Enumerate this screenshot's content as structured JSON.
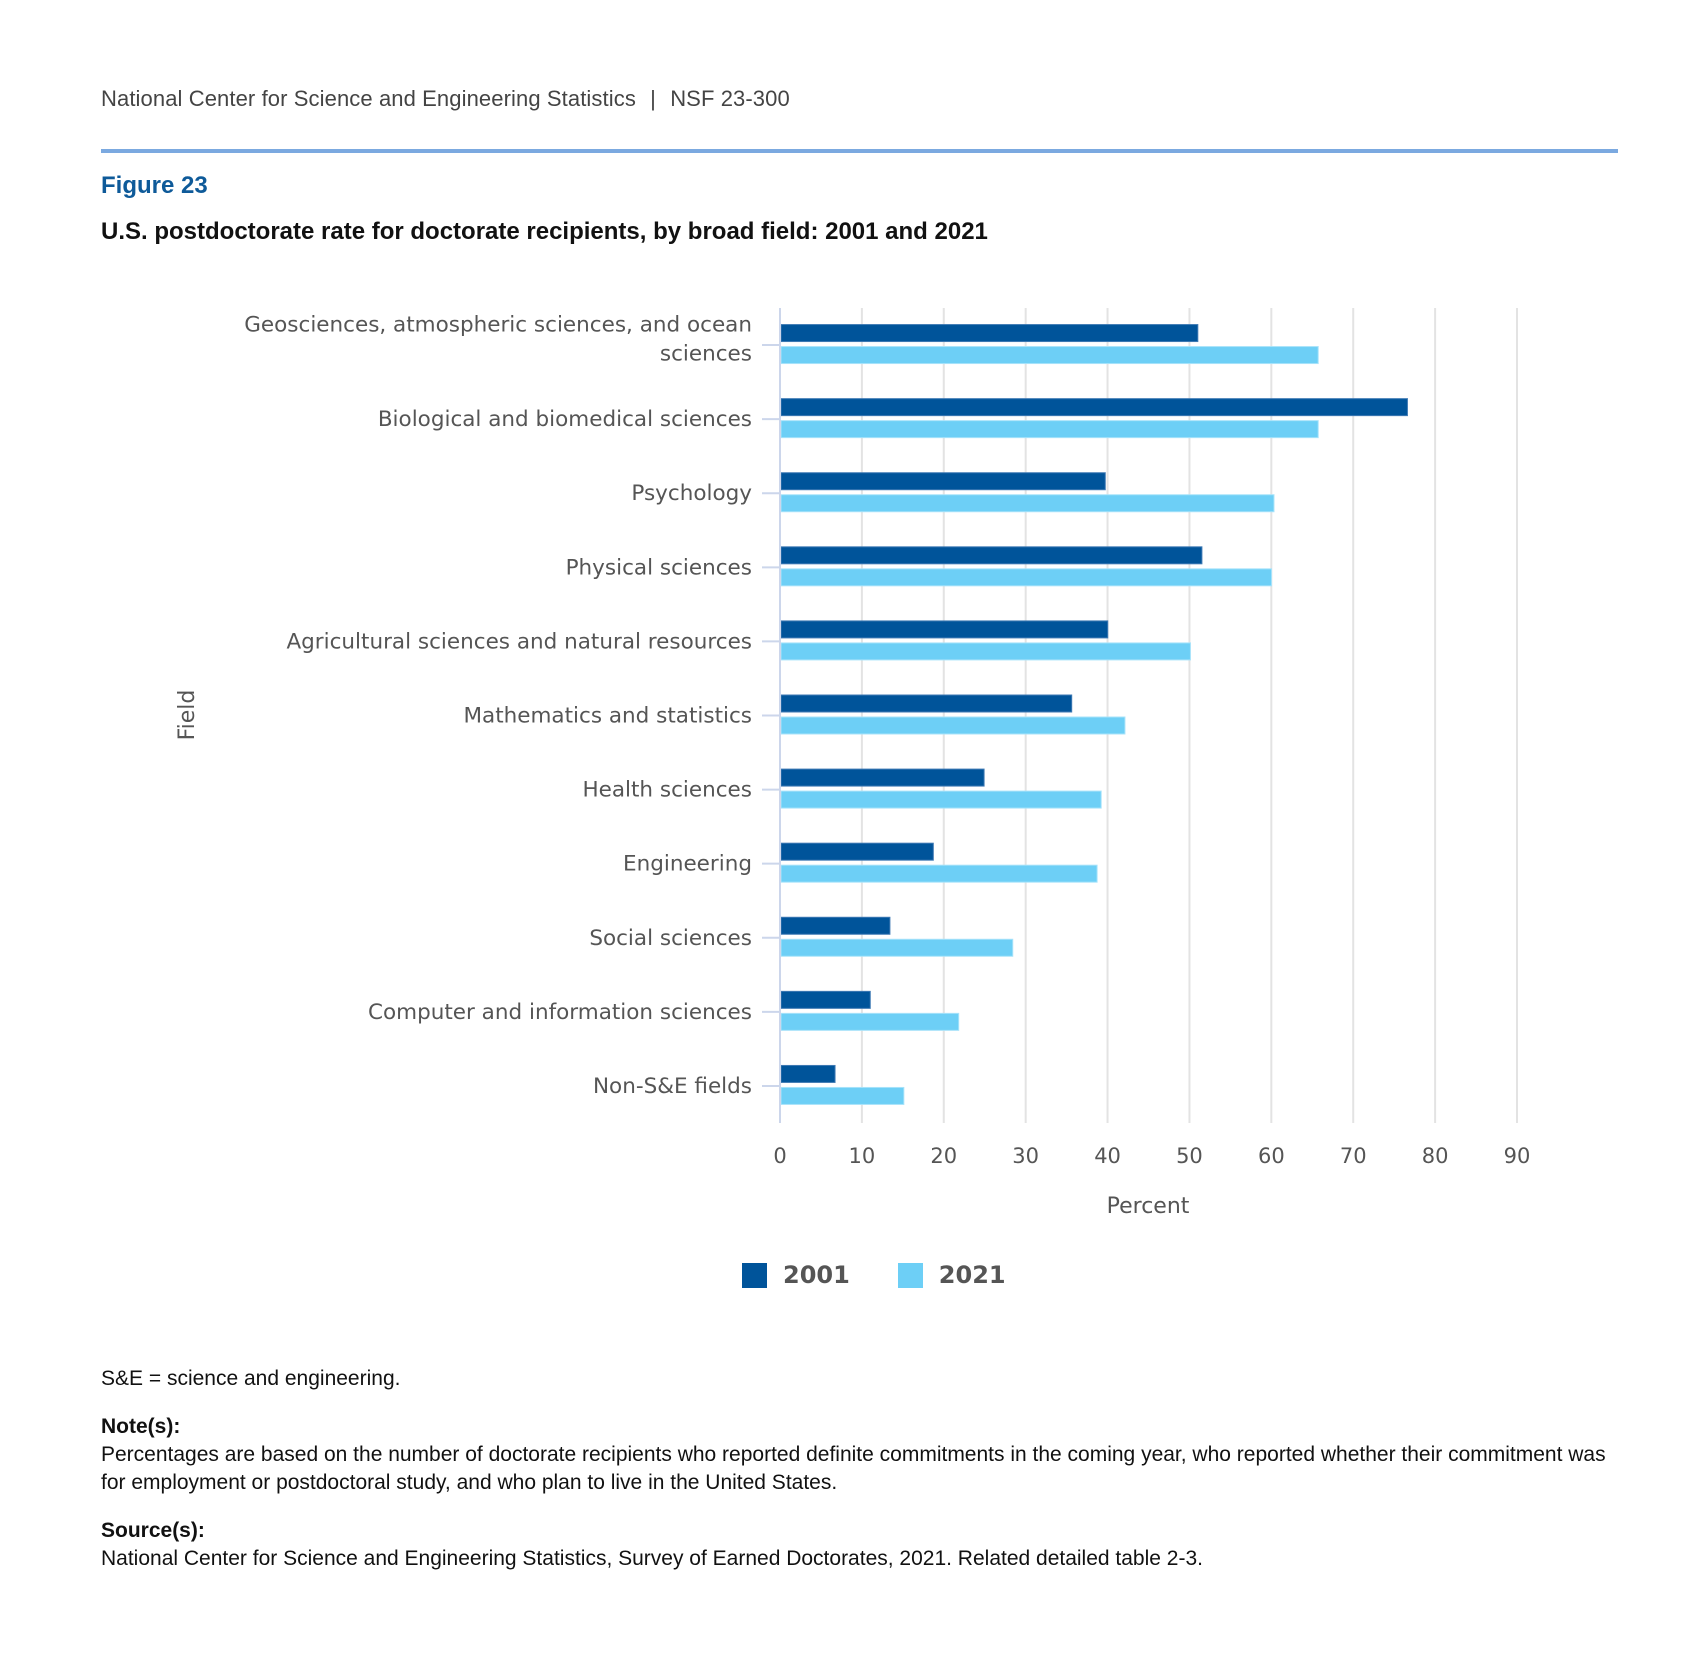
{
  "header": {
    "org": "National Center for Science and Engineering Statistics",
    "separator": "|",
    "report_id": "NSF 23-300"
  },
  "figure": {
    "number": "Figure 23",
    "title": "U.S. postdoctorate rate for doctorate recipients, by broad field: 2001 and 2021"
  },
  "colors": {
    "series_2001": "#00549a",
    "series_2021": "#6dcff6",
    "grid": "#e3e3e3",
    "axis": "#ccd6eb",
    "rule": "#7ba9e0",
    "figure_number": "#0e5a99"
  },
  "chart_data": {
    "type": "bar",
    "orientation": "horizontal",
    "title": "U.S. postdoctorate rate for doctorate recipients, by broad field: 2001 and 2021",
    "xlabel": "Percent",
    "ylabel": "Field",
    "xlim": [
      0,
      90
    ],
    "xticks": [
      0,
      10,
      20,
      30,
      40,
      50,
      60,
      70,
      80,
      90
    ],
    "grid": true,
    "legend_position": "bottom-center",
    "categories": [
      "Geosciences, atmospheric sciences, and ocean sciences",
      "Biological and biomedical sciences",
      "Psychology",
      "Physical sciences",
      "Agricultural sciences and natural resources",
      "Mathematics and statistics",
      "Health sciences",
      "Engineering",
      "Social sciences",
      "Computer and information sciences",
      "Non-S&E fields"
    ],
    "category_lines": [
      [
        "Geosciences, atmospheric sciences, and ocean",
        "sciences"
      ],
      [
        "Biological and biomedical sciences"
      ],
      [
        "Psychology"
      ],
      [
        "Physical sciences"
      ],
      [
        "Agricultural sciences and natural resources"
      ],
      [
        "Mathematics and statistics"
      ],
      [
        "Health sciences"
      ],
      [
        "Engineering"
      ],
      [
        "Social sciences"
      ],
      [
        "Computer and information sciences"
      ],
      [
        "Non-S&E fields"
      ]
    ],
    "series": [
      {
        "name": "2001",
        "values": [
          50.9,
          76.5,
          39.6,
          51.4,
          39.9,
          35.5,
          24.8,
          18.6,
          13.3,
          10.9,
          6.6
        ]
      },
      {
        "name": "2021",
        "values": [
          65.6,
          65.6,
          60.2,
          59.9,
          50.0,
          42.0,
          39.1,
          38.6,
          28.3,
          21.7,
          15.0
        ]
      }
    ]
  },
  "legend": {
    "items": [
      "2001",
      "2021"
    ]
  },
  "notes": {
    "abbrev": "S&E = science and engineering.",
    "note_label": "Note(s):",
    "note_text": "Percentages are based on the number of doctorate recipients who reported definite commitments in the coming year, who reported whether their commitment was for employment or postdoctoral study, and who plan to live in the United States.",
    "source_label": "Source(s):",
    "source_text": "National Center for Science and Engineering Statistics, Survey of Earned Doctorates, 2021. Related detailed table 2-3."
  }
}
